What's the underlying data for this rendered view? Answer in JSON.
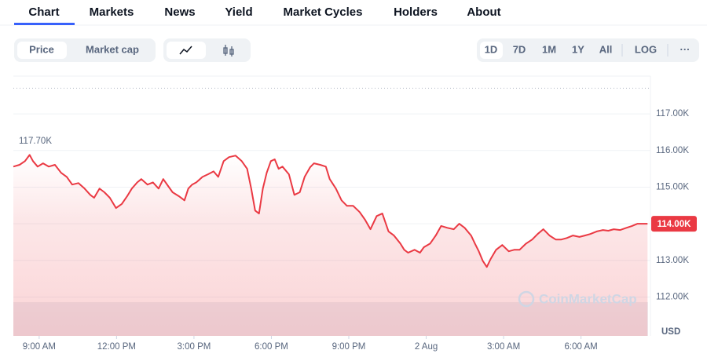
{
  "nav": [
    "Chart",
    "Markets",
    "News",
    "Yield",
    "Market Cycles",
    "Holders",
    "About"
  ],
  "toggle": [
    "Price",
    "Market cap"
  ],
  "ranges": [
    "1D",
    "7D",
    "1M",
    "1Y",
    "All",
    "LOG"
  ],
  "more": "···",
  "chart_data": {
    "type": "line",
    "color": "#ea3943",
    "x": [
      8.0,
      8.24,
      8.45,
      8.63,
      8.76,
      8.94,
      9.15,
      9.37,
      9.61,
      9.85,
      10.07,
      10.28,
      10.52,
      10.76,
      10.98,
      11.13,
      11.34,
      11.53,
      11.74,
      11.98,
      12.2,
      12.41,
      12.59,
      12.8,
      12.96,
      13.2,
      13.41,
      13.63,
      13.81,
      14.02,
      14.17,
      14.42,
      14.63,
      14.78,
      14.93,
      15.09,
      15.33,
      15.54,
      15.76,
      15.94,
      16.15,
      16.36,
      16.61,
      16.85,
      17.06,
      17.22,
      17.37,
      17.52,
      17.67,
      17.82,
      17.98,
      18.13,
      18.28,
      18.43,
      18.68,
      18.89,
      19.1,
      19.29,
      19.5,
      19.65,
      19.89,
      20.11,
      20.26,
      20.5,
      20.72,
      20.93,
      21.17,
      21.42,
      21.63,
      21.84,
      22.08,
      22.3,
      22.54,
      22.75,
      23.0,
      23.15,
      23.3,
      23.55,
      23.76,
      23.91,
      24.15,
      24.37,
      24.58,
      24.82,
      25.07,
      25.28,
      25.49,
      25.74,
      25.89,
      26.04,
      26.19,
      26.35,
      26.5,
      26.71,
      26.95,
      27.2,
      27.41,
      27.62,
      27.87,
      28.11,
      28.32,
      28.54,
      28.78,
      29.02,
      29.24,
      29.45,
      29.69,
      29.94,
      30.15,
      30.36,
      30.61,
      30.85,
      31.06,
      31.27,
      31.52,
      31.76,
      31.98,
      32.19,
      32.43,
      32.58
    ],
    "values": [
      115.56,
      115.61,
      115.71,
      115.88,
      115.71,
      115.56,
      115.65,
      115.56,
      115.61,
      115.39,
      115.28,
      115.07,
      115.11,
      114.96,
      114.79,
      114.71,
      114.96,
      114.86,
      114.71,
      114.43,
      114.54,
      114.75,
      114.96,
      115.13,
      115.22,
      115.07,
      115.13,
      114.96,
      115.22,
      115.01,
      114.86,
      114.75,
      114.64,
      114.96,
      115.07,
      115.13,
      115.28,
      115.35,
      115.43,
      115.28,
      115.71,
      115.82,
      115.86,
      115.71,
      115.5,
      114.96,
      114.36,
      114.28,
      114.96,
      115.39,
      115.71,
      115.76,
      115.5,
      115.56,
      115.35,
      114.79,
      114.86,
      115.28,
      115.54,
      115.65,
      115.61,
      115.56,
      115.22,
      114.96,
      114.64,
      114.49,
      114.49,
      114.32,
      114.11,
      113.85,
      114.21,
      114.28,
      113.79,
      113.68,
      113.46,
      113.29,
      113.21,
      113.29,
      113.21,
      113.36,
      113.46,
      113.68,
      113.94,
      113.89,
      113.85,
      114.0,
      113.89,
      113.68,
      113.46,
      113.25,
      112.99,
      112.82,
      113.04,
      113.29,
      113.42,
      113.25,
      113.29,
      113.29,
      113.46,
      113.57,
      113.72,
      113.85,
      113.68,
      113.57,
      113.57,
      113.61,
      113.68,
      113.64,
      113.68,
      113.72,
      113.79,
      113.83,
      113.81,
      113.85,
      113.83,
      113.89,
      113.94,
      114.0,
      114.0,
      114.0
    ],
    "xlim": [
      8.0,
      32.6
    ],
    "ylim": [
      110.94,
      118.03
    ],
    "xticks": [
      {
        "value": 9,
        "label": "9:00 AM"
      },
      {
        "value": 12,
        "label": "12:00 PM"
      },
      {
        "value": 15,
        "label": "3:00 PM"
      },
      {
        "value": 18,
        "label": "6:00 PM"
      },
      {
        "value": 21,
        "label": "9:00 PM"
      },
      {
        "value": 24,
        "label": "2 Aug"
      },
      {
        "value": 27,
        "label": "3:00 AM"
      },
      {
        "value": 30,
        "label": "6:00 AM"
      }
    ],
    "yticks": [
      {
        "value": 112,
        "label": "112.00K"
      },
      {
        "value": 113,
        "label": "113.00K"
      },
      {
        "value": 114,
        "label": "114.00K"
      },
      {
        "value": 115,
        "label": "115.00K"
      },
      {
        "value": 116,
        "label": "116.00K"
      },
      {
        "value": 117,
        "label": "117.00K"
      }
    ],
    "grid": true,
    "high": {
      "value": 117.7,
      "label": "117.70K"
    },
    "last_price": {
      "value": 114.0,
      "label": "114.00K"
    },
    "currency": "USD",
    "watermark": "CoinMarketCap"
  }
}
